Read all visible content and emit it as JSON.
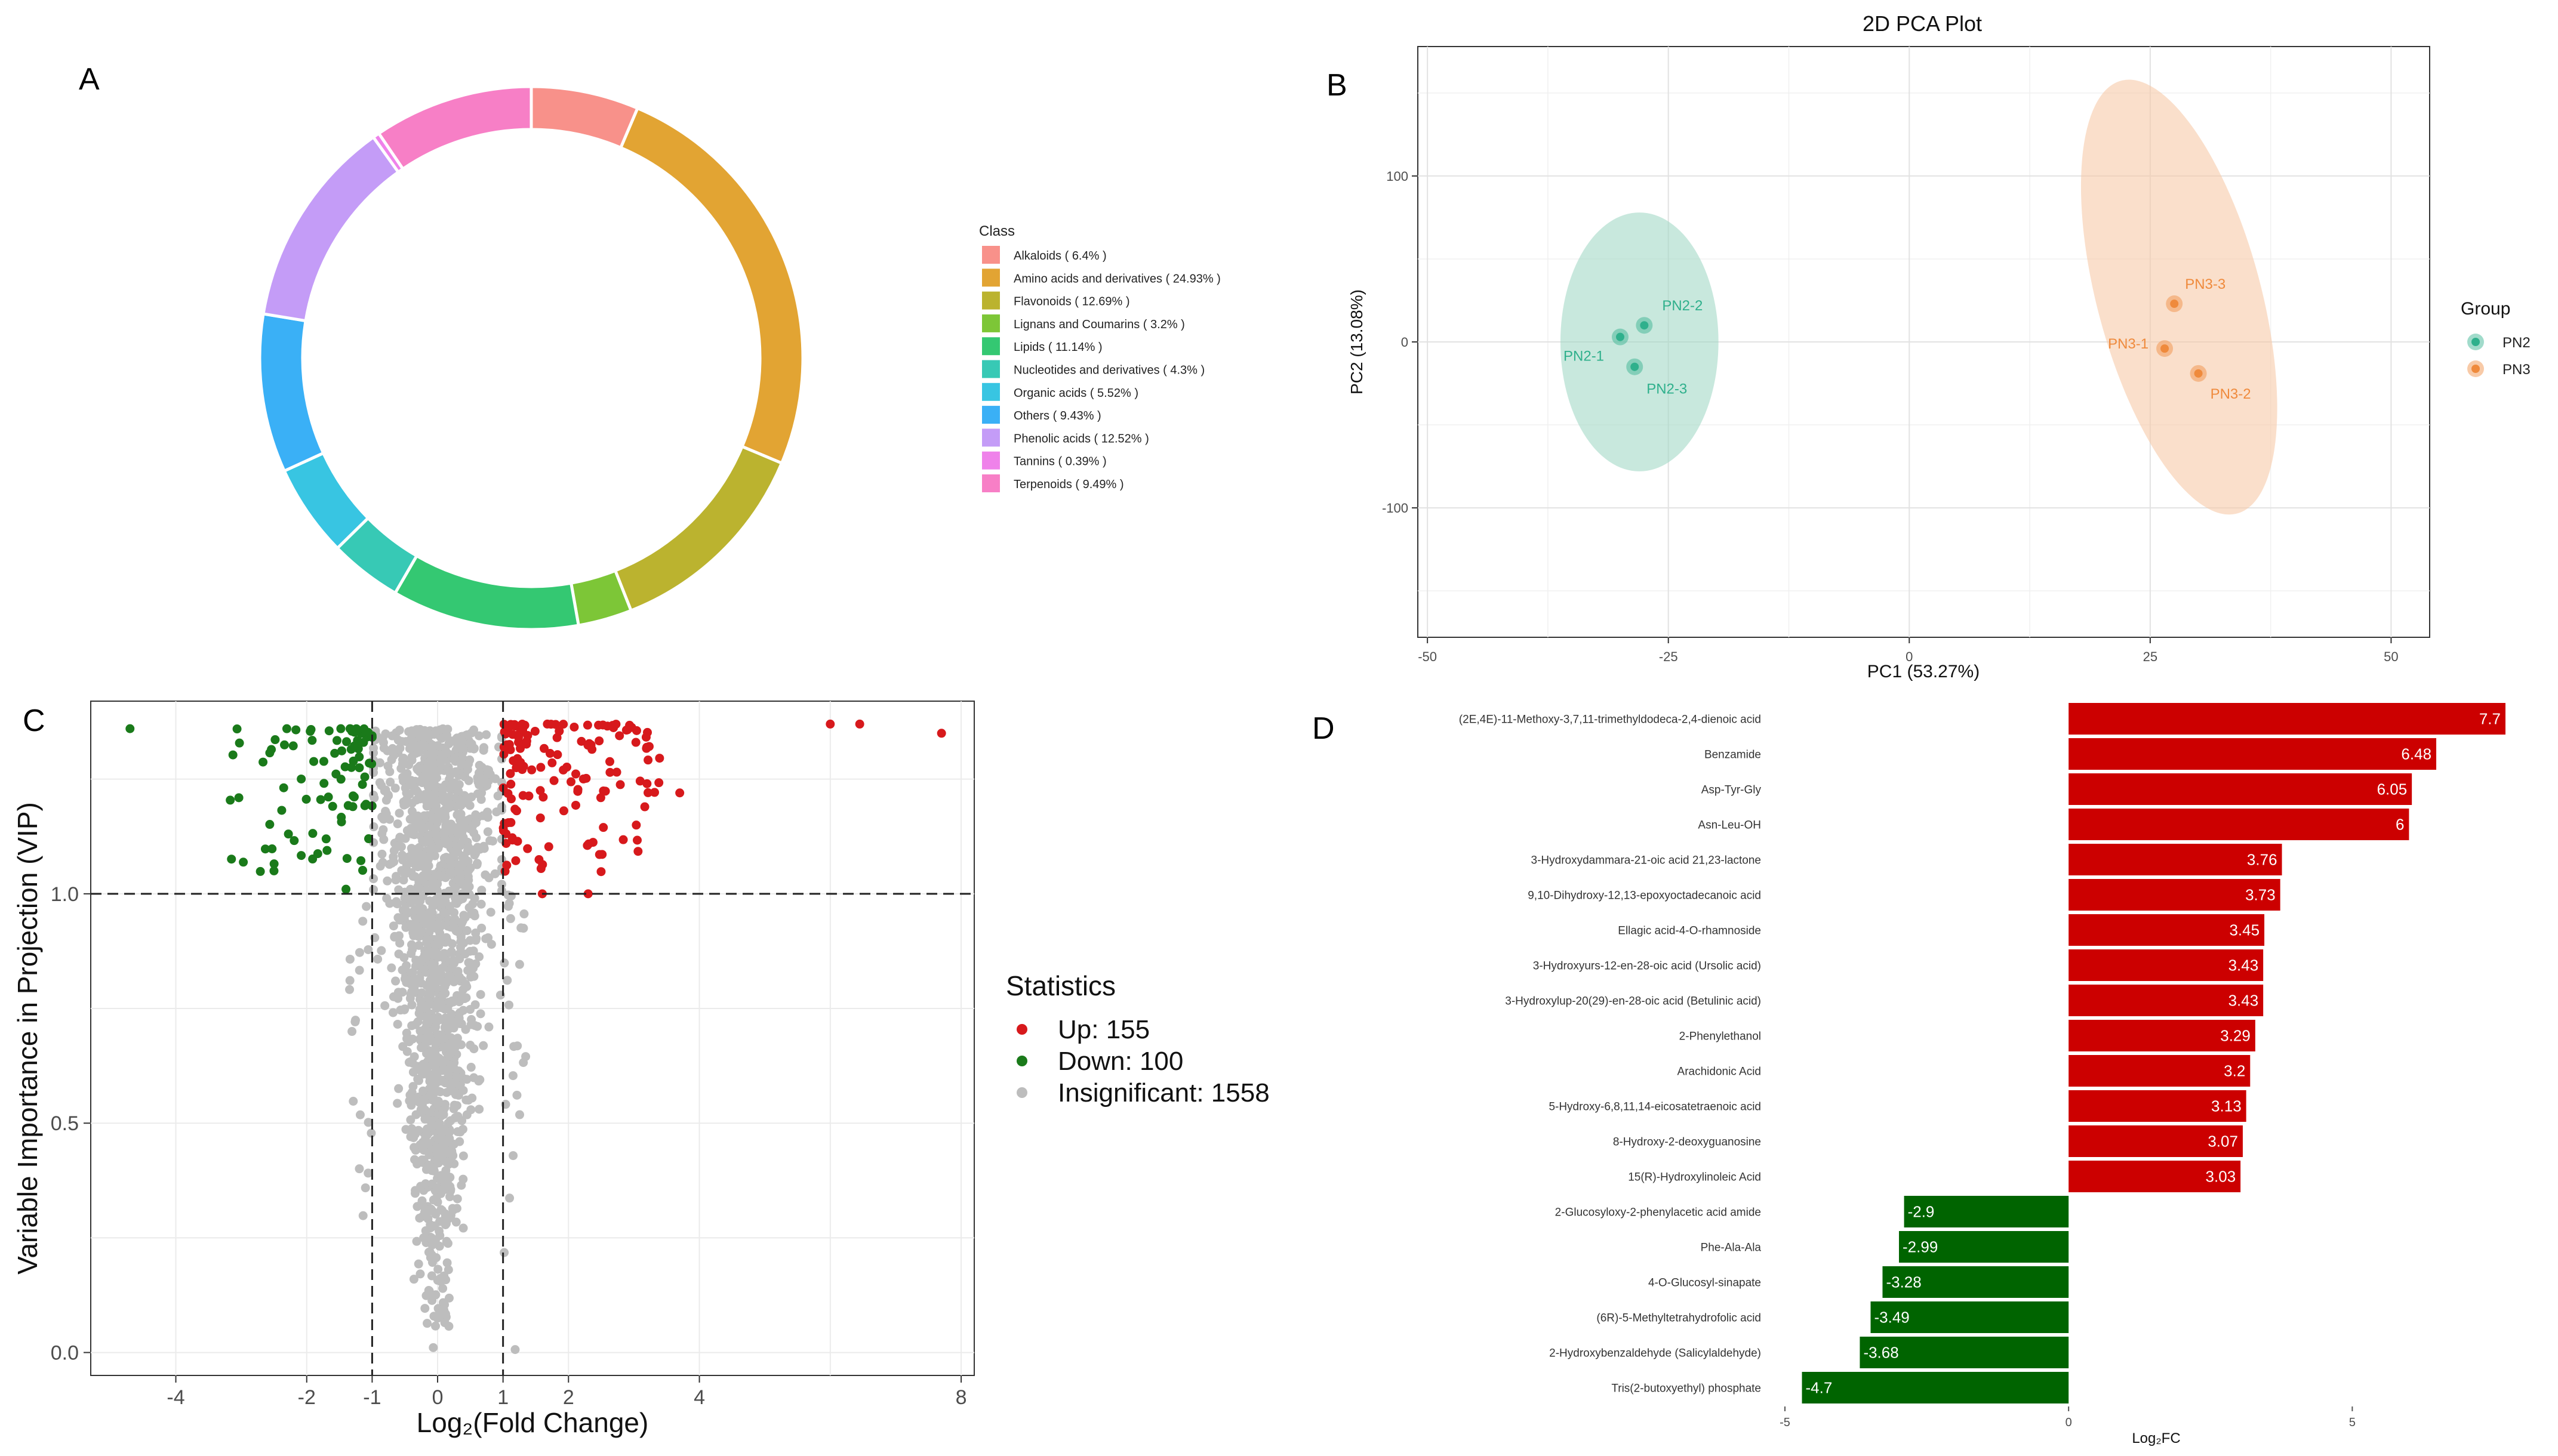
{
  "panels": {
    "A": "A",
    "B": "B",
    "C": "C",
    "D": "D"
  },
  "chart_data": [
    {
      "id": "A",
      "type": "pie",
      "variant": "donut",
      "legend_title": "Class",
      "legend_placement": "right",
      "slices": [
        {
          "label": "Alkaloids ( 6.4% )",
          "value": 6.4,
          "color": "#f8918a"
        },
        {
          "label": "Amino acids and derivatives ( 24.93% )",
          "value": 24.93,
          "color": "#e2a433"
        },
        {
          "label": "Flavonoids ( 12.69% )",
          "value": 12.69,
          "color": "#bbb32f"
        },
        {
          "label": "Lignans and Coumarins ( 3.2% )",
          "value": 3.2,
          "color": "#7dc637"
        },
        {
          "label": "Lipids ( 11.14% )",
          "value": 11.14,
          "color": "#34c872"
        },
        {
          "label": "Nucleotides and derivatives ( 4.3% )",
          "value": 4.3,
          "color": "#37c9b5"
        },
        {
          "label": "Organic acids ( 5.52% )",
          "value": 5.52,
          "color": "#38c5e2"
        },
        {
          "label": "Others ( 9.43% )",
          "value": 9.43,
          "color": "#3ab0f6"
        },
        {
          "label": "Phenolic acids ( 12.52% )",
          "value": 12.52,
          "color": "#c49cf7"
        },
        {
          "label": "Tannins ( 0.39% )",
          "value": 0.39,
          "color": "#ef82ea"
        },
        {
          "label": "Terpenoids ( 9.49% )",
          "value": 9.49,
          "color": "#f77fc6"
        }
      ]
    },
    {
      "id": "B",
      "type": "scatter",
      "title": "2D PCA Plot",
      "xlabel": "PC1 (53.27%)",
      "ylabel": "PC2 (13.08%)",
      "xlim": [
        -51,
        54
      ],
      "ylim": [
        -178,
        178
      ],
      "xticks": [
        -50,
        -25,
        0,
        25,
        50
      ],
      "yticks": [
        100,
        0,
        -100
      ],
      "grid": true,
      "legend_title": "Group",
      "legend_placement": "right",
      "series": [
        {
          "name": "PN2",
          "color": "#2fb08c",
          "fill": "#a3d9c6",
          "ellipse": {
            "cx": -28,
            "cy": 0,
            "rx": 8.2,
            "ry": 78,
            "angle": 0
          },
          "points": [
            {
              "label": "PN2-1",
              "x": -30,
              "y": 3
            },
            {
              "label": "PN2-2",
              "x": -27.5,
              "y": 10
            },
            {
              "label": "PN2-3",
              "x": -28.5,
              "y": -15
            }
          ]
        },
        {
          "name": "PN3",
          "color": "#ef8a3c",
          "fill": "#f7c9a8",
          "ellipse": {
            "cx": 28,
            "cy": 27,
            "rx": 8.5,
            "ry": 135,
            "angle": -15
          },
          "points": [
            {
              "label": "PN3-1",
              "x": 26.5,
              "y": -4
            },
            {
              "label": "PN3-2",
              "x": 30,
              "y": -19
            },
            {
              "label": "PN3-3",
              "x": 27.5,
              "y": 23
            }
          ]
        }
      ]
    },
    {
      "id": "C",
      "type": "scatter",
      "variant": "volcano",
      "xlabel": "Log₂(Fold Change)",
      "ylabel": "Variable Importance in Projection (VIP)",
      "xlim": [
        -5.3,
        8.2
      ],
      "ylim": [
        -0.05,
        1.42
      ],
      "xticks": [
        -4,
        -2,
        -1,
        0,
        1,
        2,
        4,
        8
      ],
      "yticks": [
        0.0,
        0.5,
        1.0
      ],
      "ytick_labels": [
        "0.0",
        "0.5",
        "1.0"
      ],
      "thresholds": {
        "x": [
          -1,
          1
        ],
        "y": 1.0
      },
      "grid": true,
      "legend_title": "Statistics",
      "legend_placement": "right",
      "groups": [
        {
          "label": "Up: 155",
          "name": "Up",
          "count": 155,
          "color": "#d7191c"
        },
        {
          "label": "Down: 100",
          "name": "Down",
          "count": 100,
          "color": "#1a7a1a"
        },
        {
          "label": "Insignificant: 1558",
          "name": "Insignificant",
          "count": 1558,
          "color": "#bdbdbd"
        }
      ],
      "notable_points": [
        {
          "x": -4.7,
          "y": 1.36,
          "group": "Down"
        },
        {
          "x": -2.5,
          "y": 1.05,
          "group": "Down"
        },
        {
          "x": -1.4,
          "y": 1.01,
          "group": "Down"
        },
        {
          "x": 6.0,
          "y": 1.37,
          "group": "Up"
        },
        {
          "x": 6.45,
          "y": 1.37,
          "group": "Up"
        },
        {
          "x": 7.7,
          "y": 1.35,
          "group": "Up"
        },
        {
          "x": 3.7,
          "y": 1.22,
          "group": "Up"
        },
        {
          "x": 3.2,
          "y": 1.24,
          "group": "Up"
        },
        {
          "x": 2.3,
          "y": 1.0,
          "group": "Up"
        },
        {
          "x": 1.6,
          "y": 1.0,
          "group": "Up"
        }
      ]
    },
    {
      "id": "D",
      "type": "bar",
      "orientation": "horizontal",
      "xlabel": "Log₂FC",
      "xlim": [
        -5,
        8.1
      ],
      "xticks": [
        -5,
        0,
        5
      ],
      "up_color": "#cc0000",
      "down_color": "#006400",
      "categories": [
        "(2E,4E)-11-Methoxy-3,7,11-trimethyldodeca-2,4-dienoic acid",
        "Benzamide",
        "Asp-Tyr-Gly",
        "Asn-Leu-OH",
        "3-Hydroxydammara-21-oic acid 21,23-lactone",
        "9,10-Dihydroxy-12,13-epoxyoctadecanoic acid",
        "Ellagic acid-4-O-rhamnoside",
        "3-Hydroxyurs-12-en-28-oic acid (Ursolic acid)",
        "3-Hydroxylup-20(29)-en-28-oic acid (Betulinic acid)",
        "2-Phenylethanol",
        "Arachidonic Acid",
        "5-Hydroxy-6,8,11,14-eicosatetraenoic acid",
        "8-Hydroxy-2-deoxyguanosine",
        "15(R)-Hydroxylinoleic Acid",
        "2-Glucosyloxy-2-phenylacetic acid amide",
        "Phe-Ala-Ala",
        "4-O-Glucosyl-sinapate",
        "(6R)-5-Methyltetrahydrofolic acid",
        "2-Hydroxybenzaldehyde (Salicylaldehyde)",
        "Tris(2-butoxyethyl) phosphate"
      ],
      "values": [
        7.7,
        6.48,
        6.05,
        6,
        3.76,
        3.73,
        3.45,
        3.43,
        3.43,
        3.29,
        3.2,
        3.13,
        3.07,
        3.03,
        -2.9,
        -2.99,
        -3.28,
        -3.49,
        -3.68,
        -4.7
      ],
      "value_labels": [
        "7.7",
        "6.48",
        "6.05",
        "6",
        "3.76",
        "3.73",
        "3.45",
        "3.43",
        "3.43",
        "3.29",
        "3.2",
        "3.13",
        "3.07",
        "3.03",
        "-2.9",
        "-2.99",
        "-3.28",
        "-3.49",
        "-3.68",
        "-4.7"
      ]
    }
  ]
}
